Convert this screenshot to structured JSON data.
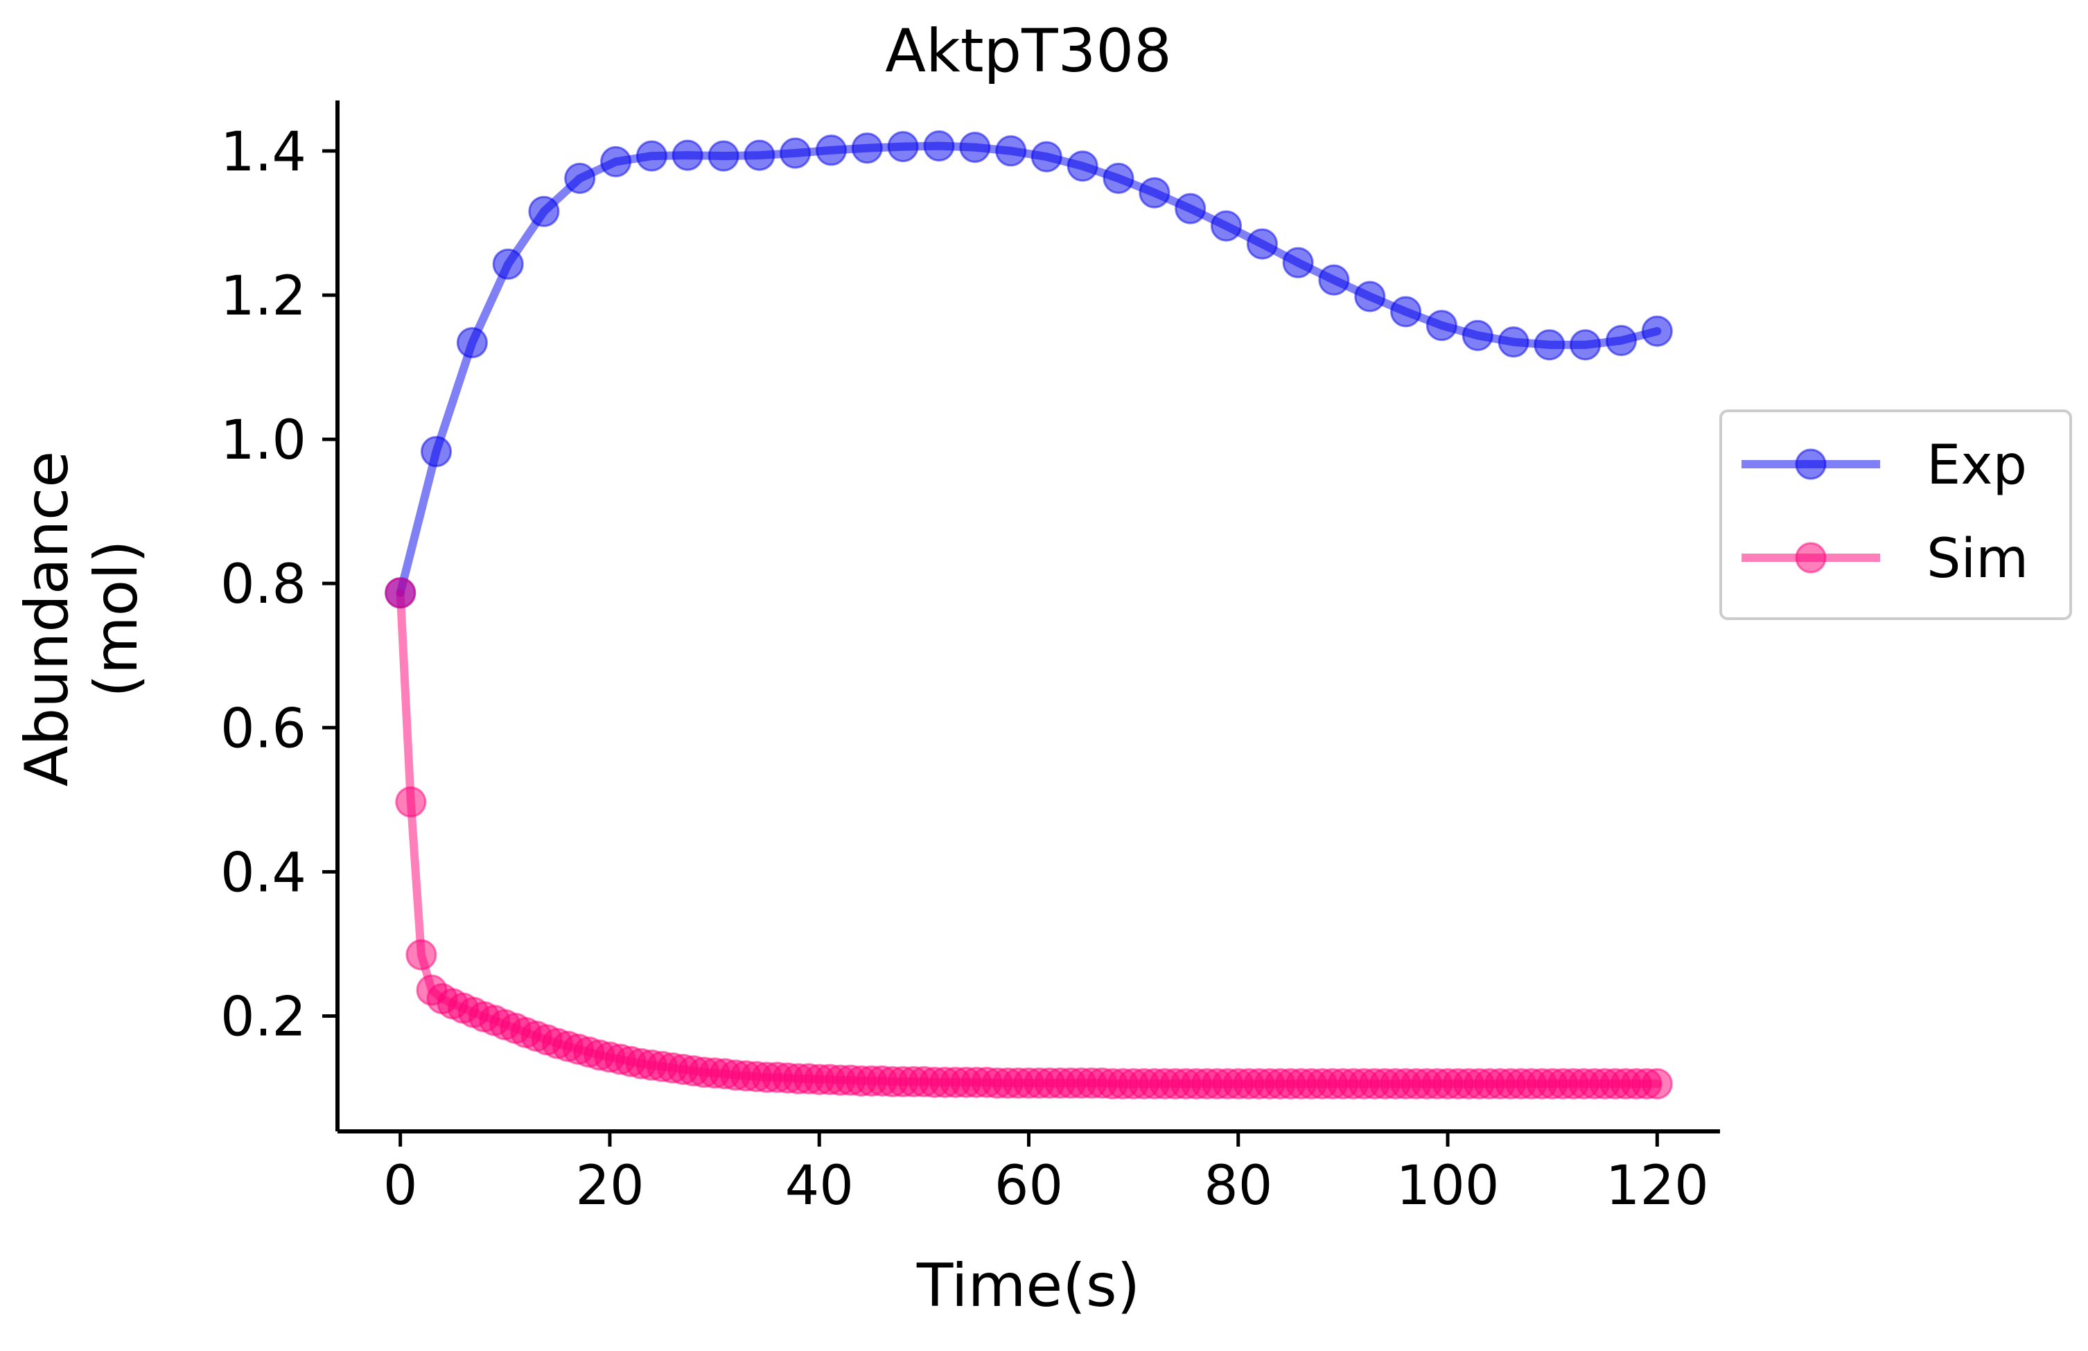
{
  "chart_data": {
    "type": "line",
    "title": "AktpT308",
    "xlabel": "Time(s)",
    "ylabel_line1": "Abundance",
    "ylabel_line2": "(mol)",
    "xlim": [
      -6,
      126
    ],
    "ylim": [
      0.04,
      1.47
    ],
    "x_ticks": [
      0,
      20,
      40,
      60,
      80,
      100,
      120
    ],
    "y_ticks": [
      0.2,
      0.4,
      0.6,
      0.8,
      1.0,
      1.2,
      1.4
    ],
    "y_tick_labels": [
      "0.2",
      "0.4",
      "0.6",
      "0.8",
      "1.0",
      "1.2",
      "1.4"
    ],
    "grid": false,
    "legend_position": "center-right outside",
    "series": [
      {
        "name": "Exp",
        "color": "#0000ee",
        "x": [
          0.0,
          3.43,
          6.86,
          10.29,
          13.71,
          17.14,
          20.57,
          24.0,
          27.43,
          30.86,
          34.29,
          37.71,
          41.14,
          44.57,
          48.0,
          51.43,
          54.86,
          58.29,
          61.71,
          65.14,
          68.57,
          72.0,
          75.43,
          78.86,
          82.29,
          85.71,
          89.14,
          92.57,
          96.0,
          99.43,
          102.86,
          106.29,
          109.71,
          113.14,
          116.57,
          120.0
        ],
        "y": [
          0.787,
          0.983,
          1.134,
          1.243,
          1.316,
          1.362,
          1.385,
          1.393,
          1.394,
          1.393,
          1.394,
          1.397,
          1.401,
          1.404,
          1.406,
          1.407,
          1.405,
          1.4,
          1.392,
          1.379,
          1.362,
          1.342,
          1.32,
          1.296,
          1.271,
          1.245,
          1.221,
          1.198,
          1.177,
          1.158,
          1.144,
          1.135,
          1.131,
          1.131,
          1.137,
          1.15
        ]
      },
      {
        "name": "Sim",
        "color": "#ff0077",
        "x": [
          0,
          1,
          2,
          3,
          4,
          5,
          6,
          7,
          8,
          9,
          10,
          11,
          12,
          13,
          14,
          15,
          16,
          17,
          18,
          19,
          20,
          21,
          22,
          23,
          24,
          25,
          26,
          27,
          28,
          29,
          30,
          31,
          32,
          33,
          34,
          35,
          36,
          37,
          38,
          39,
          40,
          41,
          42,
          43,
          44,
          45,
          46,
          47,
          48,
          49,
          50,
          51,
          52,
          53,
          54,
          55,
          56,
          57,
          58,
          59,
          60,
          61,
          62,
          63,
          64,
          65,
          66,
          67,
          68,
          69,
          70,
          71,
          72,
          73,
          74,
          75,
          76,
          77,
          78,
          79,
          80,
          81,
          82,
          83,
          84,
          85,
          86,
          87,
          88,
          89,
          90,
          91,
          92,
          93,
          94,
          95,
          96,
          97,
          98,
          99,
          100,
          101,
          102,
          103,
          104,
          105,
          106,
          107,
          108,
          109,
          110,
          111,
          112,
          113,
          114,
          115,
          116,
          117,
          118,
          119,
          120
        ],
        "y": [
          0.787,
          0.497,
          0.285,
          0.236,
          0.224,
          0.217,
          0.211,
          0.205,
          0.199,
          0.194,
          0.188,
          0.183,
          0.177,
          0.172,
          0.167,
          0.162,
          0.158,
          0.154,
          0.15,
          0.146,
          0.143,
          0.14,
          0.137,
          0.134,
          0.132,
          0.13,
          0.128,
          0.126,
          0.124,
          0.122,
          0.121,
          0.12,
          0.118,
          0.117,
          0.116,
          0.115,
          0.115,
          0.114,
          0.113,
          0.113,
          0.112,
          0.112,
          0.111,
          0.111,
          0.11,
          0.11,
          0.11,
          0.109,
          0.109,
          0.109,
          0.109,
          0.108,
          0.108,
          0.108,
          0.108,
          0.108,
          0.108,
          0.107,
          0.107,
          0.107,
          0.107,
          0.107,
          0.107,
          0.107,
          0.107,
          0.107,
          0.107,
          0.107,
          0.106,
          0.106,
          0.106,
          0.106,
          0.106,
          0.106,
          0.106,
          0.106,
          0.106,
          0.106,
          0.106,
          0.106,
          0.106,
          0.106,
          0.106,
          0.106,
          0.106,
          0.106,
          0.106,
          0.106,
          0.106,
          0.106,
          0.106,
          0.106,
          0.106,
          0.106,
          0.106,
          0.106,
          0.106,
          0.106,
          0.106,
          0.106,
          0.106,
          0.106,
          0.106,
          0.106,
          0.106,
          0.106,
          0.106,
          0.106,
          0.106,
          0.106,
          0.106,
          0.106,
          0.106,
          0.106,
          0.106,
          0.106,
          0.106,
          0.106,
          0.106,
          0.106,
          0.106
        ]
      }
    ]
  }
}
